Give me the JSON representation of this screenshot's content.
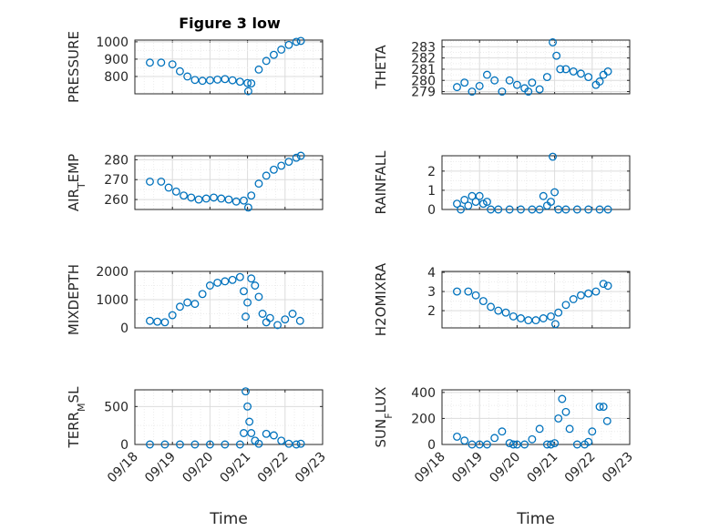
{
  "figure": {
    "title": "Figure 3 low"
  },
  "colors": {
    "marker": "#0072BD",
    "axes": "#262626",
    "grid": "#dcdcdc"
  },
  "chart_data": [
    {
      "type": "scatter",
      "ylabel": "PRESSURE",
      "ylim": [
        700,
        1010
      ],
      "yticks": [
        800,
        900,
        1000
      ],
      "xlim": [
        0,
        5
      ],
      "grid": true,
      "x": [
        0.4,
        0.7,
        1.0,
        1.2,
        1.4,
        1.6,
        1.8,
        2.0,
        2.2,
        2.4,
        2.6,
        2.8,
        3.0,
        3.02,
        3.1,
        3.3,
        3.5,
        3.7,
        3.9,
        4.1,
        4.3,
        4.42
      ],
      "y": [
        880,
        880,
        870,
        830,
        800,
        780,
        775,
        778,
        782,
        785,
        778,
        770,
        762,
        715,
        760,
        840,
        890,
        925,
        955,
        982,
        1000,
        1005
      ]
    },
    {
      "type": "scatter",
      "ylabel": "THETA",
      "ylim": [
        278.8,
        283.6
      ],
      "yticks": [
        279,
        280,
        281,
        282,
        283
      ],
      "xlim": [
        0,
        5
      ],
      "grid": true,
      "x": [
        0.4,
        0.6,
        0.8,
        1.0,
        1.2,
        1.4,
        1.6,
        1.8,
        2.0,
        2.2,
        2.3,
        2.4,
        2.6,
        2.8,
        2.95,
        3.05,
        3.15,
        3.3,
        3.5,
        3.7,
        3.9,
        4.1,
        4.2,
        4.3,
        4.42
      ],
      "y": [
        279.4,
        279.8,
        279.0,
        279.5,
        280.5,
        280.0,
        279.0,
        280.0,
        279.6,
        279.3,
        279.0,
        279.8,
        279.2,
        280.3,
        283.4,
        282.2,
        281.0,
        281.0,
        280.8,
        280.6,
        280.3,
        279.6,
        279.9,
        280.5,
        280.8
      ]
    },
    {
      "type": "scatter",
      "ylabel": "AIR_TEMP",
      "ylim": [
        255,
        282
      ],
      "yticks": [
        260,
        270,
        280
      ],
      "xlim": [
        0,
        5
      ],
      "grid": true,
      "x": [
        0.4,
        0.7,
        0.9,
        1.1,
        1.3,
        1.5,
        1.7,
        1.9,
        2.1,
        2.3,
        2.5,
        2.7,
        2.9,
        3.02,
        3.1,
        3.3,
        3.5,
        3.7,
        3.9,
        4.1,
        4.3,
        4.42
      ],
      "y": [
        269,
        269,
        266,
        264,
        262,
        261,
        260,
        260.5,
        261,
        260.5,
        260,
        259,
        259.5,
        256,
        262,
        268,
        272,
        275,
        277,
        279,
        281,
        282
      ]
    },
    {
      "type": "scatter",
      "ylabel": "RAINFALL",
      "ylim": [
        0,
        2.8
      ],
      "yticks": [
        0,
        1,
        2
      ],
      "xlim": [
        0,
        5
      ],
      "grid": true,
      "x": [
        0.4,
        0.5,
        0.6,
        0.7,
        0.8,
        0.9,
        1.0,
        1.1,
        1.2,
        1.3,
        1.5,
        1.8,
        2.1,
        2.4,
        2.6,
        2.7,
        2.8,
        2.9,
        2.95,
        3.0,
        3.1,
        3.3,
        3.6,
        3.9,
        4.2,
        4.42
      ],
      "y": [
        0.3,
        0.0,
        0.5,
        0.2,
        0.7,
        0.4,
        0.7,
        0.3,
        0.4,
        0.0,
        0.0,
        0.0,
        0.0,
        0.0,
        0.0,
        0.7,
        0.2,
        0.4,
        2.75,
        0.9,
        0.0,
        0.0,
        0.0,
        0.0,
        0.0,
        0.0
      ]
    },
    {
      "type": "scatter",
      "ylabel": "MIXDEPTH",
      "ylim": [
        0,
        2000
      ],
      "yticks": [
        0,
        1000,
        2000
      ],
      "xlim": [
        0,
        5
      ],
      "grid": true,
      "x": [
        0.4,
        0.6,
        0.8,
        1.0,
        1.2,
        1.4,
        1.6,
        1.8,
        2.0,
        2.2,
        2.4,
        2.6,
        2.8,
        2.9,
        2.95,
        3.0,
        3.1,
        3.2,
        3.3,
        3.4,
        3.5,
        3.6,
        3.8,
        4.0,
        4.2,
        4.4
      ],
      "y": [
        250,
        220,
        200,
        450,
        750,
        900,
        850,
        1200,
        1500,
        1600,
        1650,
        1700,
        1800,
        1300,
        400,
        900,
        1750,
        1500,
        1100,
        500,
        200,
        350,
        100,
        300,
        500,
        250
      ]
    },
    {
      "type": "scatter",
      "ylabel": "H2OMIXRA",
      "ylim": [
        1.1,
        4.05
      ],
      "yticks": [
        2,
        3,
        4
      ],
      "xlim": [
        0,
        5
      ],
      "grid": true,
      "x": [
        0.4,
        0.7,
        0.9,
        1.1,
        1.3,
        1.5,
        1.7,
        1.9,
        2.1,
        2.3,
        2.5,
        2.7,
        2.9,
        3.02,
        3.1,
        3.3,
        3.5,
        3.7,
        3.9,
        4.1,
        4.3,
        4.42
      ],
      "y": [
        3.0,
        3.0,
        2.8,
        2.5,
        2.2,
        2.0,
        1.9,
        1.7,
        1.6,
        1.5,
        1.5,
        1.6,
        1.7,
        1.3,
        1.9,
        2.3,
        2.6,
        2.8,
        2.9,
        3.0,
        3.4,
        3.3
      ]
    },
    {
      "type": "scatter",
      "ylabel": "TERR_MSL",
      "ylim": [
        0,
        720
      ],
      "yticks": [
        0,
        500
      ],
      "xlim": [
        0,
        5
      ],
      "grid": true,
      "x": [
        0.4,
        0.8,
        1.2,
        1.6,
        2.0,
        2.4,
        2.8,
        2.9,
        2.95,
        3.0,
        3.05,
        3.1,
        3.2,
        3.3,
        3.5,
        3.7,
        3.9,
        4.1,
        4.3,
        4.42
      ],
      "y": [
        0,
        0,
        0,
        0,
        0,
        0,
        0,
        150,
        700,
        500,
        300,
        150,
        50,
        10,
        140,
        120,
        50,
        10,
        0,
        10
      ]
    },
    {
      "type": "scatter",
      "ylabel": "SUN_FLUX",
      "ylim": [
        0,
        420
      ],
      "yticks": [
        0,
        200,
        400
      ],
      "xlim": [
        0,
        5
      ],
      "grid": true,
      "xticks": [
        "09/18",
        "09/19",
        "09/20",
        "09/21",
        "09/22",
        "09/23"
      ],
      "xlabel": "Time",
      "x": [
        0.4,
        0.6,
        0.8,
        1.0,
        1.2,
        1.4,
        1.6,
        1.8,
        1.9,
        2.0,
        2.2,
        2.4,
        2.6,
        2.8,
        2.9,
        3.0,
        3.1,
        3.2,
        3.3,
        3.4,
        3.6,
        3.8,
        3.9,
        4.0,
        4.2,
        4.3,
        4.4
      ],
      "y": [
        60,
        30,
        0,
        0,
        0,
        50,
        100,
        10,
        0,
        0,
        0,
        40,
        120,
        0,
        0,
        10,
        200,
        350,
        250,
        120,
        0,
        0,
        20,
        100,
        290,
        290,
        180
      ]
    }
  ]
}
